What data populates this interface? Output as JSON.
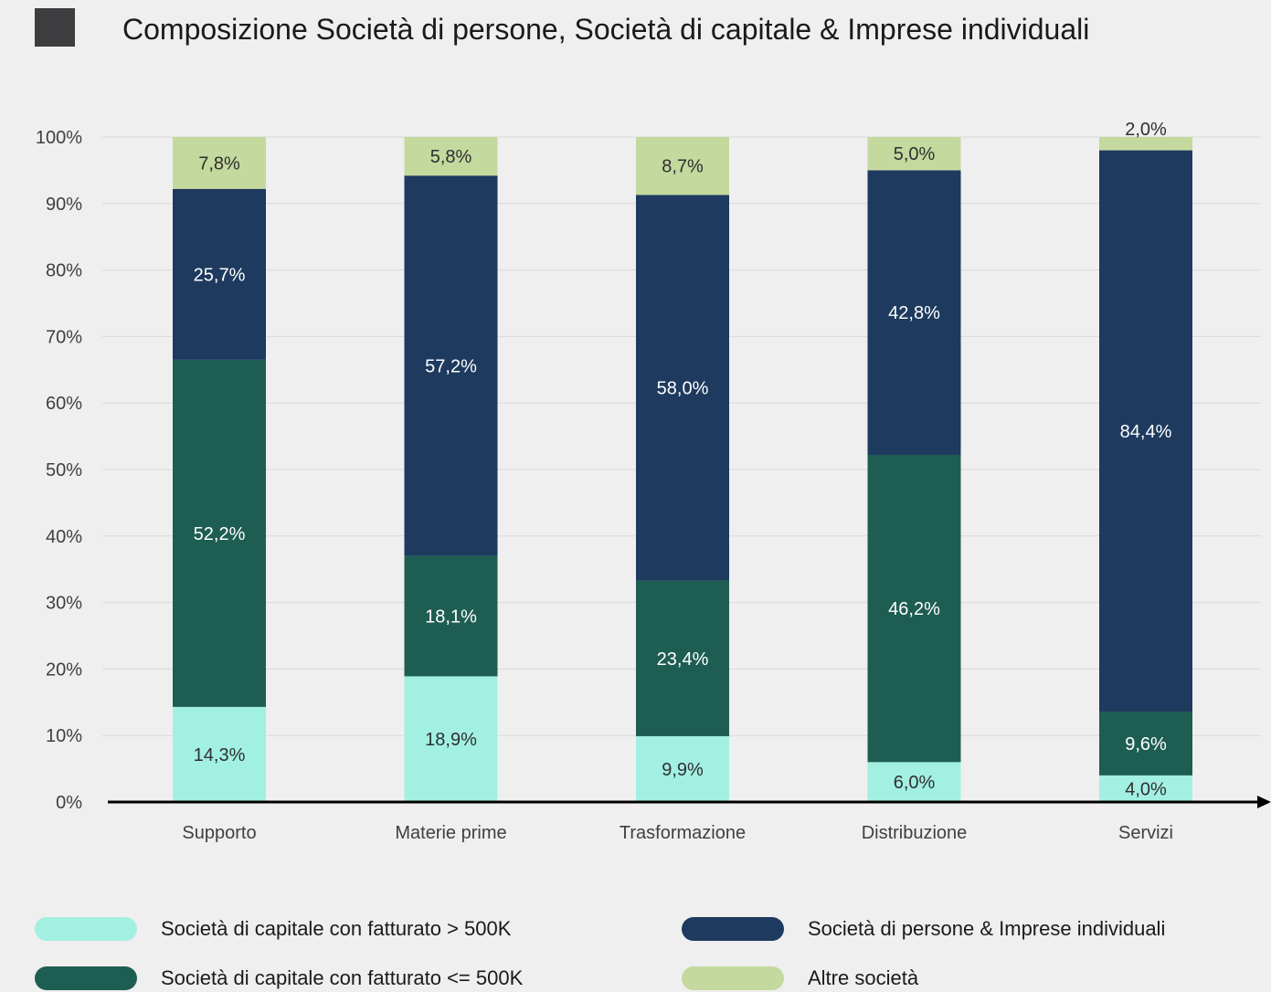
{
  "title": "Composizione Società di persone, Società di capitale & Imprese individuali",
  "colors": {
    "background": "#efefef",
    "grid": "#d9d9d9",
    "axis": "#000000",
    "marker": "#3d3d3f"
  },
  "chart_data": {
    "type": "bar",
    "stacked": true,
    "categories": [
      "Supporto",
      "Materie prime",
      "Trasformazione",
      "Distribuzione",
      "Servizi"
    ],
    "ylim": [
      0,
      100
    ],
    "yticks": [
      "0%",
      "10%",
      "20%",
      "30%",
      "40%",
      "50%",
      "60%",
      "70%",
      "80%",
      "90%",
      "100%"
    ],
    "grid": true,
    "legend_position": "bottom",
    "series": [
      {
        "name": "Società di capitale con fatturato > 500K",
        "color": "#a1f0e2",
        "label_color": "#2f2f2f",
        "values": [
          14.3,
          18.9,
          9.9,
          6.0,
          4.0
        ],
        "labels": [
          "14,3%",
          "18,9%",
          "9,9%",
          "6,0%",
          "4,0%"
        ]
      },
      {
        "name": "Società di capitale con fatturato <= 500K",
        "color": "#1e5e52",
        "label_color": "#ffffff",
        "values": [
          52.2,
          18.1,
          23.4,
          46.2,
          9.6
        ],
        "labels": [
          "52,2%",
          "18,1%",
          "23,4%",
          "46,2%",
          "9,6%"
        ]
      },
      {
        "name": "Società di persone & Imprese individuali",
        "color": "#1e3a5f",
        "label_color": "#ffffff",
        "values": [
          25.7,
          57.2,
          58.0,
          42.8,
          84.4
        ],
        "labels": [
          "25,7%",
          "57,2%",
          "58,0%",
          "42,8%",
          "84,4%"
        ]
      },
      {
        "name": "Altre società",
        "color": "#c3d99e",
        "label_color": "#2f2f2f",
        "values": [
          7.8,
          5.8,
          8.7,
          5.0,
          2.0
        ],
        "labels": [
          "7,8%",
          "5,8%",
          "8,7%",
          "5,0%",
          "2,0%"
        ]
      }
    ]
  },
  "legend": [
    {
      "label": "Società di capitale con fatturato > 500K",
      "color": "#a1f0e2"
    },
    {
      "label": "Società di persone & Imprese individuali",
      "color": "#1e3a5f"
    },
    {
      "label": "Società di capitale con fatturato <= 500K",
      "color": "#1e5e52"
    },
    {
      "label": "Altre società",
      "color": "#c3d99e"
    }
  ]
}
